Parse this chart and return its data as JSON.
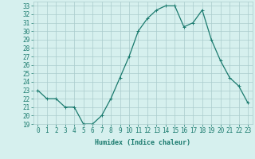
{
  "x": [
    0,
    1,
    2,
    3,
    4,
    5,
    6,
    7,
    8,
    9,
    10,
    11,
    12,
    13,
    14,
    15,
    16,
    17,
    18,
    19,
    20,
    21,
    22,
    23
  ],
  "y": [
    23,
    22,
    22,
    21,
    21,
    19,
    19,
    20,
    22,
    24.5,
    27,
    30,
    31.5,
    32.5,
    33,
    33,
    30.5,
    31,
    32.5,
    29,
    26.5,
    24.5,
    23.5,
    21.5
  ],
  "line_color": "#1a7a6e",
  "marker": "+",
  "marker_color": "#1a7a6e",
  "bg_color": "#d6f0ee",
  "grid_color": "#aacccc",
  "xlabel": "Humidex (Indice chaleur)",
  "ylim": [
    19,
    33.5
  ],
  "xlim": [
    -0.5,
    23.5
  ],
  "yticks": [
    19,
    20,
    21,
    22,
    23,
    24,
    25,
    26,
    27,
    28,
    29,
    30,
    31,
    32,
    33
  ],
  "xticks": [
    0,
    1,
    2,
    3,
    4,
    5,
    6,
    7,
    8,
    9,
    10,
    11,
    12,
    13,
    14,
    15,
    16,
    17,
    18,
    19,
    20,
    21,
    22,
    23
  ],
  "title_color": "#1a7a6e",
  "label_fontsize": 6,
  "tick_fontsize": 5.5
}
